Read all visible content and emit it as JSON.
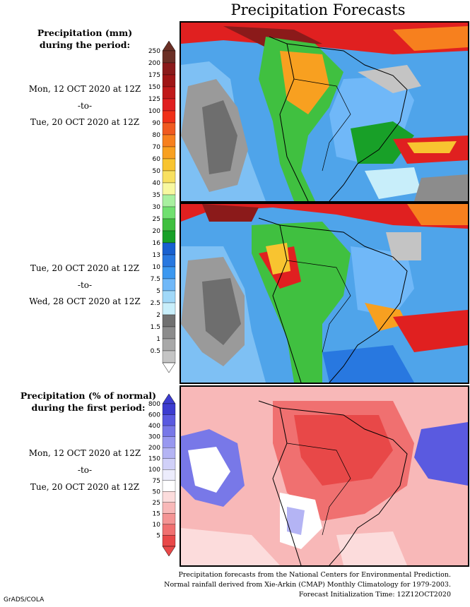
{
  "title": "Precipitation Forecasts",
  "panel1": {
    "heading": [
      "Precipitation (mm)",
      "during the period:"
    ],
    "start": "Mon, 12 OCT 2020 at 12Z",
    "sep": "-to-",
    "end": "Tue, 20 OCT 2020 at 12Z"
  },
  "panel2": {
    "start": "Tue, 20 OCT 2020 at 12Z",
    "sep": "-to-",
    "end": "Wed, 28 OCT 2020 at 12Z"
  },
  "panel3": {
    "heading": [
      "Precipitation (% of normal)",
      "during the first period:"
    ],
    "start": "Mon, 12 OCT 2020 at 12Z",
    "sep": "-to-",
    "end": "Tue, 20 OCT 2020 at 12Z"
  },
  "precip_scale": {
    "labels": [
      "250",
      "200",
      "175",
      "150",
      "125",
      "100",
      "90",
      "80",
      "70",
      "60",
      "50",
      "40",
      "35",
      "30",
      "25",
      "20",
      "16",
      "13",
      "10",
      "7.5",
      "5",
      "2.5",
      "2",
      "1.5",
      "1",
      "0.5"
    ],
    "colors": [
      "#6b2f25",
      "#8b1a1a",
      "#a01515",
      "#c01a1a",
      "#e02020",
      "#f03018",
      "#f05a20",
      "#f7801e",
      "#f8a020",
      "#f8c430",
      "#f8e060",
      "#f8f8a0",
      "#a8f0a0",
      "#70e070",
      "#40c040",
      "#18a028",
      "#1860d0",
      "#2878e0",
      "#3c98f0",
      "#70b8f8",
      "#a0d8f8",
      "#c8eefa",
      "#707070",
      "#8c8c8c",
      "#a8a8a8",
      "#c4c4c4"
    ]
  },
  "pct_scale": {
    "labels": [
      "800",
      "600",
      "400",
      "300",
      "200",
      "150",
      "100",
      "75",
      "50",
      "25",
      "15",
      "10",
      "5"
    ],
    "colors": [
      "#3c3cd0",
      "#5a5ae0",
      "#7878e8",
      "#9898f0",
      "#b4b4f4",
      "#d0d0f8",
      "#ececfc",
      "#ffffff",
      "#fcdcdc",
      "#f8b8b8",
      "#f49494",
      "#f07070",
      "#e84848"
    ]
  },
  "footnote": [
    "Precipitation forecasts from the National Centers for Environmental Prediction.",
    "Normal rainfall derived from Xie-Arkin (CMAP) Monthly Climatology for 1979-2003.",
    "Forecast Initialization Time: 12Z12OCT2020"
  ],
  "credit": "GrADS/COLA"
}
